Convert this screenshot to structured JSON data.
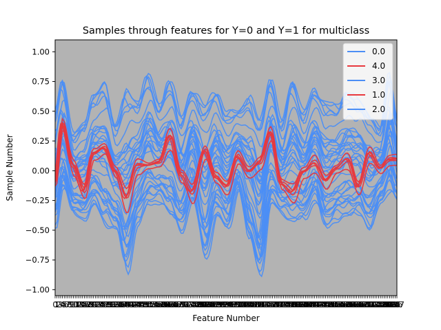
{
  "chart_data": {
    "type": "line",
    "title": "Samples through features for Y=0 and Y=1 for multiclass",
    "xlabel": "Feature Number",
    "ylabel": "Sample Number",
    "ylim": [
      -1.05,
      1.1
    ],
    "xlim": [
      0,
      187
    ],
    "yticks": [
      -1.0,
      -0.75,
      -0.5,
      -0.25,
      0.0,
      0.25,
      0.5,
      0.75,
      1.0
    ],
    "ytick_labels": [
      "−1.00",
      "−0.75",
      "−0.50",
      "−0.25",
      "0.00",
      "0.25",
      "0.50",
      "0.75",
      "1.00"
    ],
    "x_tick_count": 188,
    "background": "#b3b3b3",
    "grid": false,
    "legend_position": "top-right",
    "colors": {
      "blue": "#4b8ef5",
      "red": "#e8383d"
    },
    "legend": [
      {
        "label": "0.0",
        "color": "#4b8ef5"
      },
      {
        "label": "4.0",
        "color": "#e8383d"
      },
      {
        "label": "3.0",
        "color": "#4b8ef5"
      },
      {
        "label": "1.0",
        "color": "#e8383d"
      },
      {
        "label": "2.0",
        "color": "#4b8ef5"
      }
    ],
    "series_envelope": {
      "x_anchor": [
        0,
        4,
        10,
        16,
        21,
        27,
        33,
        39,
        45,
        51,
        57,
        63,
        69,
        75,
        82,
        88,
        94,
        100,
        106,
        112,
        118,
        124,
        130,
        136,
        142,
        148,
        154,
        160,
        166,
        172,
        178,
        183,
        187
      ],
      "blue_upper": [
        0.55,
        0.84,
        0.35,
        0.45,
        0.7,
        0.8,
        0.45,
        0.75,
        0.65,
        0.88,
        0.6,
        0.85,
        0.5,
        0.75,
        0.62,
        0.75,
        0.55,
        0.55,
        0.7,
        0.5,
        0.85,
        0.45,
        0.85,
        0.55,
        0.75,
        0.65,
        0.6,
        0.75,
        0.65,
        0.55,
        0.4,
        0.88,
        0.5
      ],
      "blue_lower": [
        -0.5,
        -0.2,
        -0.4,
        -0.45,
        -0.35,
        -0.5,
        -0.55,
        -0.92,
        -0.5,
        -0.35,
        -0.3,
        -0.45,
        -0.55,
        -0.3,
        -0.8,
        -0.45,
        -0.55,
        -0.2,
        -0.65,
        -0.93,
        -0.35,
        -0.4,
        -0.5,
        -0.45,
        -0.3,
        -0.55,
        -0.45,
        -0.45,
        -0.4,
        -0.55,
        -0.3,
        -0.2,
        -0.3
      ],
      "red_upper": [
        -0.05,
        0.5,
        0.2,
        -0.02,
        0.25,
        0.3,
        0.1,
        0.02,
        0.2,
        0.1,
        0.15,
        0.49,
        0.1,
        0.0,
        0.3,
        0.05,
        0.0,
        0.25,
        0.1,
        0.2,
        0.45,
        0.0,
        0.0,
        0.1,
        0.25,
        0.05,
        0.1,
        0.25,
        0.0,
        0.3,
        0.1,
        0.2,
        0.2
      ],
      "red_lower": [
        -0.15,
        0.3,
        -0.1,
        -0.3,
        0.05,
        0.1,
        -0.1,
        -0.44,
        -0.1,
        0.0,
        0.0,
        0.1,
        -0.15,
        -0.35,
        0.05,
        -0.15,
        -0.25,
        0.0,
        -0.1,
        -0.05,
        0.2,
        -0.2,
        -0.35,
        -0.1,
        -0.1,
        -0.2,
        -0.05,
        -0.05,
        -0.25,
        0.0,
        -0.05,
        0.0,
        0.0
      ]
    }
  }
}
